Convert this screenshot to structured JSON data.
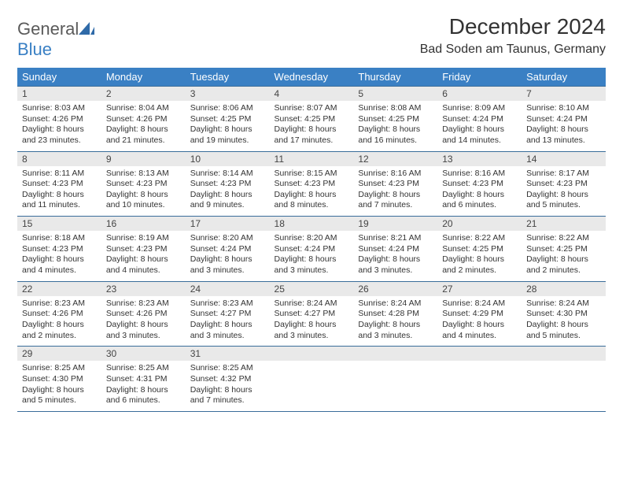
{
  "logo": {
    "general": "General",
    "blue": "Blue"
  },
  "title": "December 2024",
  "location": "Bad Soden am Taunus, Germany",
  "colors": {
    "header_bg": "#3a80c4",
    "header_fg": "#ffffff",
    "daynum_bg": "#e9e9e9",
    "border": "#3a6d9a",
    "text": "#333333",
    "logo_gray": "#5a5a5a",
    "logo_blue": "#3a80c4"
  },
  "weekdays": [
    "Sunday",
    "Monday",
    "Tuesday",
    "Wednesday",
    "Thursday",
    "Friday",
    "Saturday"
  ],
  "weeks": [
    [
      {
        "n": "1",
        "sr": "Sunrise: 8:03 AM",
        "ss": "Sunset: 4:26 PM",
        "dl": "Daylight: 8 hours and 23 minutes."
      },
      {
        "n": "2",
        "sr": "Sunrise: 8:04 AM",
        "ss": "Sunset: 4:26 PM",
        "dl": "Daylight: 8 hours and 21 minutes."
      },
      {
        "n": "3",
        "sr": "Sunrise: 8:06 AM",
        "ss": "Sunset: 4:25 PM",
        "dl": "Daylight: 8 hours and 19 minutes."
      },
      {
        "n": "4",
        "sr": "Sunrise: 8:07 AM",
        "ss": "Sunset: 4:25 PM",
        "dl": "Daylight: 8 hours and 17 minutes."
      },
      {
        "n": "5",
        "sr": "Sunrise: 8:08 AM",
        "ss": "Sunset: 4:25 PM",
        "dl": "Daylight: 8 hours and 16 minutes."
      },
      {
        "n": "6",
        "sr": "Sunrise: 8:09 AM",
        "ss": "Sunset: 4:24 PM",
        "dl": "Daylight: 8 hours and 14 minutes."
      },
      {
        "n": "7",
        "sr": "Sunrise: 8:10 AM",
        "ss": "Sunset: 4:24 PM",
        "dl": "Daylight: 8 hours and 13 minutes."
      }
    ],
    [
      {
        "n": "8",
        "sr": "Sunrise: 8:11 AM",
        "ss": "Sunset: 4:23 PM",
        "dl": "Daylight: 8 hours and 11 minutes."
      },
      {
        "n": "9",
        "sr": "Sunrise: 8:13 AM",
        "ss": "Sunset: 4:23 PM",
        "dl": "Daylight: 8 hours and 10 minutes."
      },
      {
        "n": "10",
        "sr": "Sunrise: 8:14 AM",
        "ss": "Sunset: 4:23 PM",
        "dl": "Daylight: 8 hours and 9 minutes."
      },
      {
        "n": "11",
        "sr": "Sunrise: 8:15 AM",
        "ss": "Sunset: 4:23 PM",
        "dl": "Daylight: 8 hours and 8 minutes."
      },
      {
        "n": "12",
        "sr": "Sunrise: 8:16 AM",
        "ss": "Sunset: 4:23 PM",
        "dl": "Daylight: 8 hours and 7 minutes."
      },
      {
        "n": "13",
        "sr": "Sunrise: 8:16 AM",
        "ss": "Sunset: 4:23 PM",
        "dl": "Daylight: 8 hours and 6 minutes."
      },
      {
        "n": "14",
        "sr": "Sunrise: 8:17 AM",
        "ss": "Sunset: 4:23 PM",
        "dl": "Daylight: 8 hours and 5 minutes."
      }
    ],
    [
      {
        "n": "15",
        "sr": "Sunrise: 8:18 AM",
        "ss": "Sunset: 4:23 PM",
        "dl": "Daylight: 8 hours and 4 minutes."
      },
      {
        "n": "16",
        "sr": "Sunrise: 8:19 AM",
        "ss": "Sunset: 4:23 PM",
        "dl": "Daylight: 8 hours and 4 minutes."
      },
      {
        "n": "17",
        "sr": "Sunrise: 8:20 AM",
        "ss": "Sunset: 4:24 PM",
        "dl": "Daylight: 8 hours and 3 minutes."
      },
      {
        "n": "18",
        "sr": "Sunrise: 8:20 AM",
        "ss": "Sunset: 4:24 PM",
        "dl": "Daylight: 8 hours and 3 minutes."
      },
      {
        "n": "19",
        "sr": "Sunrise: 8:21 AM",
        "ss": "Sunset: 4:24 PM",
        "dl": "Daylight: 8 hours and 3 minutes."
      },
      {
        "n": "20",
        "sr": "Sunrise: 8:22 AM",
        "ss": "Sunset: 4:25 PM",
        "dl": "Daylight: 8 hours and 2 minutes."
      },
      {
        "n": "21",
        "sr": "Sunrise: 8:22 AM",
        "ss": "Sunset: 4:25 PM",
        "dl": "Daylight: 8 hours and 2 minutes."
      }
    ],
    [
      {
        "n": "22",
        "sr": "Sunrise: 8:23 AM",
        "ss": "Sunset: 4:26 PM",
        "dl": "Daylight: 8 hours and 2 minutes."
      },
      {
        "n": "23",
        "sr": "Sunrise: 8:23 AM",
        "ss": "Sunset: 4:26 PM",
        "dl": "Daylight: 8 hours and 3 minutes."
      },
      {
        "n": "24",
        "sr": "Sunrise: 8:23 AM",
        "ss": "Sunset: 4:27 PM",
        "dl": "Daylight: 8 hours and 3 minutes."
      },
      {
        "n": "25",
        "sr": "Sunrise: 8:24 AM",
        "ss": "Sunset: 4:27 PM",
        "dl": "Daylight: 8 hours and 3 minutes."
      },
      {
        "n": "26",
        "sr": "Sunrise: 8:24 AM",
        "ss": "Sunset: 4:28 PM",
        "dl": "Daylight: 8 hours and 3 minutes."
      },
      {
        "n": "27",
        "sr": "Sunrise: 8:24 AM",
        "ss": "Sunset: 4:29 PM",
        "dl": "Daylight: 8 hours and 4 minutes."
      },
      {
        "n": "28",
        "sr": "Sunrise: 8:24 AM",
        "ss": "Sunset: 4:30 PM",
        "dl": "Daylight: 8 hours and 5 minutes."
      }
    ],
    [
      {
        "n": "29",
        "sr": "Sunrise: 8:25 AM",
        "ss": "Sunset: 4:30 PM",
        "dl": "Daylight: 8 hours and 5 minutes."
      },
      {
        "n": "30",
        "sr": "Sunrise: 8:25 AM",
        "ss": "Sunset: 4:31 PM",
        "dl": "Daylight: 8 hours and 6 minutes."
      },
      {
        "n": "31",
        "sr": "Sunrise: 8:25 AM",
        "ss": "Sunset: 4:32 PM",
        "dl": "Daylight: 8 hours and 7 minutes."
      },
      {
        "n": "",
        "sr": "",
        "ss": "",
        "dl": ""
      },
      {
        "n": "",
        "sr": "",
        "ss": "",
        "dl": ""
      },
      {
        "n": "",
        "sr": "",
        "ss": "",
        "dl": ""
      },
      {
        "n": "",
        "sr": "",
        "ss": "",
        "dl": ""
      }
    ]
  ]
}
